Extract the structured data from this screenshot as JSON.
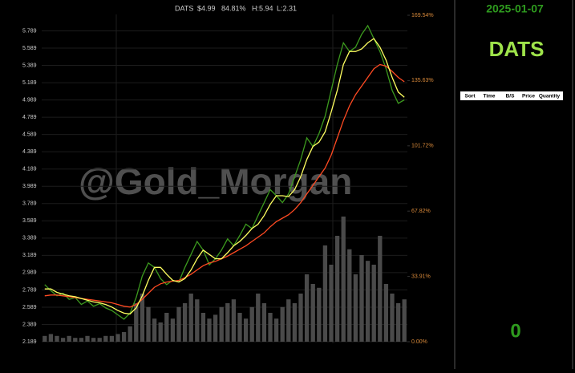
{
  "chart_data": {
    "type": "stock",
    "symbol": "DATS",
    "price": "$4.99",
    "change": "84.81%",
    "high": "H:5.94",
    "low": "L:2.31",
    "watermark": "@Gold_Morgan",
    "categories": [
      null,
      null,
      null,
      null,
      null,
      null,
      null,
      null,
      null,
      null,
      null,
      null,
      null,
      null,
      null,
      null,
      null,
      null,
      null,
      null,
      null,
      null,
      null,
      null,
      null,
      null,
      null,
      null,
      null,
      null,
      null,
      null,
      null,
      null,
      null,
      null,
      null,
      null,
      null,
      null,
      null,
      null,
      null,
      null,
      null,
      null,
      null,
      null,
      null,
      null,
      null,
      null,
      null,
      null,
      null,
      null,
      null,
      null,
      null,
      null
    ],
    "series": [
      {
        "type": "bar",
        "axis": "y2",
        "color": "#4a4a4a",
        "values": [
          3,
          4,
          3,
          2,
          3,
          2,
          2,
          3,
          2,
          2,
          3,
          3,
          4,
          5,
          8,
          20,
          25,
          18,
          12,
          10,
          15,
          12,
          18,
          20,
          25,
          22,
          15,
          12,
          14,
          18,
          20,
          22,
          15,
          12,
          18,
          25,
          20,
          15,
          12,
          18,
          22,
          20,
          25,
          35,
          30,
          28,
          50,
          40,
          55,
          65,
          48,
          35,
          45,
          42,
          40,
          55,
          30,
          25,
          20,
          22
        ]
      },
      {
        "type": "line",
        "axis": "y",
        "color": "#3c9a1e",
        "values": [
          2.85,
          2.78,
          2.72,
          2.75,
          2.68,
          2.7,
          2.62,
          2.66,
          2.6,
          2.63,
          2.58,
          2.55,
          2.5,
          2.45,
          2.52,
          2.7,
          2.95,
          3.1,
          3.05,
          2.92,
          2.85,
          2.9,
          2.88,
          3.05,
          3.2,
          3.35,
          3.25,
          3.08,
          3.15,
          3.25,
          3.38,
          3.3,
          3.42,
          3.55,
          3.5,
          3.65,
          3.8,
          3.95,
          3.88,
          3.8,
          3.9,
          4.1,
          4.3,
          4.55,
          4.45,
          4.6,
          4.8,
          5.1,
          5.4,
          5.65,
          5.55,
          5.6,
          5.75,
          5.85,
          5.7,
          5.55,
          5.35,
          5.1,
          4.95,
          4.99
        ]
      },
      {
        "type": "line",
        "axis": "y",
        "color": "#ff4a22",
        "values": [
          2.72,
          2.73,
          2.73,
          2.72,
          2.71,
          2.7,
          2.69,
          2.68,
          2.67,
          2.66,
          2.65,
          2.64,
          2.62,
          2.6,
          2.59,
          2.62,
          2.68,
          2.75,
          2.82,
          2.86,
          2.88,
          2.89,
          2.9,
          2.93,
          2.97,
          3.02,
          3.07,
          3.1,
          3.12,
          3.15,
          3.18,
          3.22,
          3.26,
          3.3,
          3.35,
          3.4,
          3.45,
          3.52,
          3.58,
          3.62,
          3.66,
          3.72,
          3.8,
          3.9,
          4.0,
          4.1,
          4.2,
          4.35,
          4.55,
          4.75,
          4.92,
          5.05,
          5.15,
          5.25,
          5.35,
          5.4,
          5.38,
          5.32,
          5.25,
          5.2
        ]
      },
      {
        "type": "line",
        "axis": "y",
        "color": "#ffff60",
        "values": [
          2.8,
          2.8,
          2.76,
          2.74,
          2.72,
          2.71,
          2.69,
          2.67,
          2.65,
          2.64,
          2.62,
          2.59,
          2.55,
          2.52,
          2.51,
          2.58,
          2.72,
          2.9,
          3.05,
          3.05,
          2.97,
          2.9,
          2.88,
          2.92,
          3.02,
          3.15,
          3.25,
          3.2,
          3.15,
          3.15,
          3.22,
          3.3,
          3.35,
          3.42,
          3.5,
          3.55,
          3.65,
          3.78,
          3.88,
          3.88,
          3.87,
          3.95,
          4.1,
          4.3,
          4.45,
          4.5,
          4.62,
          4.85,
          5.1,
          5.4,
          5.55,
          5.55,
          5.58,
          5.65,
          5.7,
          5.6,
          5.45,
          5.25,
          5.08,
          5.02
        ]
      }
    ],
    "ylim": [
      2.189,
      5.97
    ],
    "yticks": [
      2.189,
      2.389,
      2.589,
      2.789,
      2.989,
      3.189,
      3.389,
      3.589,
      3.789,
      3.989,
      4.189,
      4.389,
      4.589,
      4.789,
      4.989,
      5.189,
      5.389,
      5.589,
      5.789
    ],
    "y2lim": [
      0,
      169.54
    ],
    "y2ticks": [
      {
        "value": 0,
        "label": "0.00%"
      },
      {
        "value": 33.91,
        "label": "33.91%"
      },
      {
        "value": 67.82,
        "label": "67.82%"
      },
      {
        "value": 101.72,
        "label": "101.72%"
      },
      {
        "value": 135.63,
        "label": "135.63%"
      },
      {
        "value": 169.54,
        "label": "169.54%"
      }
    ],
    "grid": true
  },
  "panel": {
    "date": "2025-01-07",
    "symbol": "DATS",
    "columns": [
      "Sort",
      "Time",
      "B/S",
      "Price",
      "Quantity"
    ],
    "count": 0
  }
}
